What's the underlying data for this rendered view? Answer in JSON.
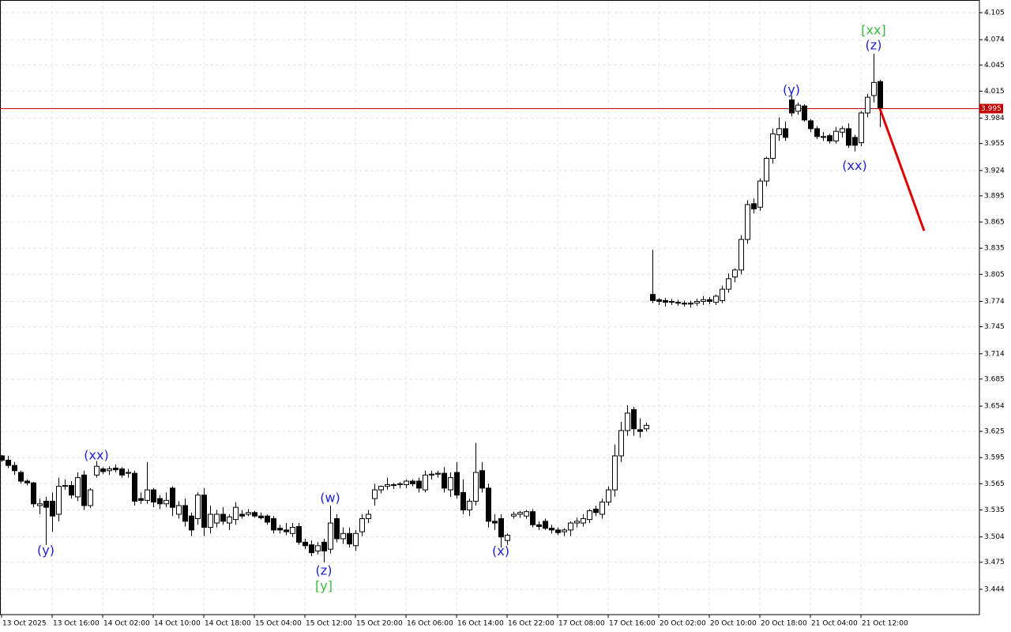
{
  "chart_data": {
    "type": "candlestick",
    "ylim": [
      3.415,
      4.1195
    ],
    "yticks": [
      4.105,
      4.074,
      4.045,
      4.015,
      3.984,
      3.955,
      3.924,
      3.895,
      3.865,
      3.835,
      3.805,
      3.774,
      3.745,
      3.714,
      3.685,
      3.654,
      3.625,
      3.595,
      3.565,
      3.535,
      3.504,
      3.475,
      3.444
    ],
    "grid": true,
    "bull_color": "#ffffff",
    "bear_color": "#000000",
    "categories": [
      "13 Oct 2025",
      null,
      null,
      null,
      null,
      null,
      null,
      null,
      "13 Oct 16:00",
      null,
      null,
      null,
      null,
      null,
      null,
      null,
      "14 Oct 02:00",
      null,
      null,
      null,
      null,
      null,
      null,
      null,
      "14 Oct 10:00",
      null,
      null,
      null,
      null,
      null,
      null,
      null,
      "14 Oct 18:00",
      null,
      null,
      null,
      null,
      null,
      null,
      null,
      "15 Oct 04:00",
      null,
      null,
      null,
      null,
      null,
      null,
      null,
      "15 Oct 12:00",
      null,
      null,
      null,
      null,
      null,
      null,
      null,
      "15 Oct 20:00",
      null,
      null,
      null,
      null,
      null,
      null,
      null,
      "16 Oct 06:00",
      null,
      null,
      null,
      null,
      null,
      null,
      null,
      "16 Oct 14:00",
      null,
      null,
      null,
      null,
      null,
      null,
      null,
      "16 Oct 22:00",
      null,
      null,
      null,
      null,
      null,
      null,
      null,
      "17 Oct 08:00",
      null,
      null,
      null,
      null,
      null,
      null,
      null,
      "17 Oct 16:00",
      null,
      null,
      null,
      null,
      null,
      null,
      null,
      "20 Oct 02:00",
      null,
      null,
      null,
      null,
      null,
      null,
      null,
      "20 Oct 10:00",
      null,
      null,
      null,
      null,
      null,
      null,
      null,
      "20 Oct 18:00",
      null,
      null,
      null,
      null,
      null,
      null,
      null,
      "21 Oct 04:00",
      null,
      null,
      null,
      null,
      null,
      null,
      null,
      "21 Oct 12:00",
      null,
      null,
      null
    ],
    "candles": [
      [
        3.597,
        3.598,
        3.59,
        3.592
      ],
      [
        3.592,
        3.597,
        3.583,
        3.586
      ],
      [
        3.586,
        3.59,
        3.575,
        3.58
      ],
      [
        3.578,
        3.58,
        3.565,
        3.568
      ],
      [
        3.568,
        3.57,
        3.563,
        3.566
      ],
      [
        3.566,
        3.567,
        3.538,
        3.542
      ],
      [
        3.54,
        3.548,
        3.53,
        3.542
      ],
      [
        3.545,
        3.55,
        3.495,
        3.538
      ],
      [
        3.545,
        3.555,
        3.51,
        3.528
      ],
      [
        3.53,
        3.572,
        3.522,
        3.562
      ],
      [
        3.562,
        3.57,
        3.558,
        3.563
      ],
      [
        3.563,
        3.568,
        3.548,
        3.552
      ],
      [
        3.55,
        3.578,
        3.545,
        3.572
      ],
      [
        3.575,
        3.58,
        3.535,
        3.54
      ],
      [
        3.54,
        3.56,
        3.537,
        3.558
      ],
      [
        3.575,
        3.591,
        3.572,
        3.585
      ],
      [
        3.582,
        3.584,
        3.576,
        3.579
      ],
      [
        3.58,
        3.585,
        3.575,
        3.582
      ],
      [
        3.583,
        3.587,
        3.578,
        3.581
      ],
      [
        3.582,
        3.584,
        3.572,
        3.575
      ],
      [
        3.577,
        3.582,
        3.572,
        3.578
      ],
      [
        3.577,
        3.58,
        3.54,
        3.545
      ],
      [
        3.548,
        3.555,
        3.542,
        3.546
      ],
      [
        3.546,
        3.59,
        3.542,
        3.558
      ],
      [
        3.558,
        3.56,
        3.538,
        3.544
      ],
      [
        3.548,
        3.552,
        3.536,
        3.542
      ],
      [
        3.542,
        3.555,
        3.538,
        3.546
      ],
      [
        3.56,
        3.562,
        3.528,
        3.538
      ],
      [
        3.53,
        3.545,
        3.525,
        3.54
      ],
      [
        3.54,
        3.548,
        3.516,
        3.522
      ],
      [
        3.528,
        3.532,
        3.505,
        3.512
      ],
      [
        3.525,
        3.555,
        3.518,
        3.552
      ],
      [
        3.552,
        3.56,
        3.505,
        3.515
      ],
      [
        3.515,
        3.54,
        3.508,
        3.53
      ],
      [
        3.52,
        3.535,
        3.515,
        3.53
      ],
      [
        3.53,
        3.538,
        3.518,
        3.522
      ],
      [
        3.52,
        3.53,
        3.512,
        3.527
      ],
      [
        3.524,
        3.544,
        3.518,
        3.538
      ],
      [
        3.53,
        3.535,
        3.525,
        3.528
      ],
      [
        3.53,
        3.536,
        3.528,
        3.532
      ],
      [
        3.532,
        3.534,
        3.526,
        3.528
      ],
      [
        3.528,
        3.532,
        3.524,
        3.526
      ],
      [
        3.528,
        3.53,
        3.518,
        3.521
      ],
      [
        3.525,
        3.528,
        3.508,
        3.512
      ],
      [
        3.514,
        3.518,
        3.508,
        3.512
      ],
      [
        3.512,
        3.52,
        3.506,
        3.51
      ],
      [
        3.508,
        3.52,
        3.504,
        3.515
      ],
      [
        3.516,
        3.52,
        3.495,
        3.498
      ],
      [
        3.498,
        3.502,
        3.49,
        3.494
      ],
      [
        3.495,
        3.5,
        3.482,
        3.486
      ],
      [
        3.488,
        3.498,
        3.484,
        3.494
      ],
      [
        3.498,
        3.502,
        3.475,
        3.488
      ],
      [
        3.49,
        3.54,
        3.485,
        3.52
      ],
      [
        3.525,
        3.53,
        3.498,
        3.502
      ],
      [
        3.502,
        3.515,
        3.496,
        3.508
      ],
      [
        3.508,
        3.515,
        3.492,
        3.496
      ],
      [
        3.494,
        3.512,
        3.488,
        3.508
      ],
      [
        3.51,
        3.53,
        3.505,
        3.525
      ],
      [
        3.525,
        3.535,
        3.52,
        3.53
      ],
      [
        3.548,
        3.565,
        3.54,
        3.558
      ],
      [
        3.558,
        3.563,
        3.554,
        3.562
      ],
      [
        3.562,
        3.572,
        3.558,
        3.564
      ],
      [
        3.563,
        3.566,
        3.559,
        3.564
      ],
      [
        3.564,
        3.567,
        3.56,
        3.565
      ],
      [
        3.564,
        3.57,
        3.56,
        3.568
      ],
      [
        3.568,
        3.57,
        3.562,
        3.565
      ],
      [
        3.568,
        3.572,
        3.555,
        3.56
      ],
      [
        3.558,
        3.58,
        3.555,
        3.575
      ],
      [
        3.575,
        3.58,
        3.57,
        3.576
      ],
      [
        3.576,
        3.58,
        3.572,
        3.577
      ],
      [
        3.577,
        3.584,
        3.555,
        3.56
      ],
      [
        3.558,
        3.578,
        3.55,
        3.572
      ],
      [
        3.578,
        3.59,
        3.548,
        3.552
      ],
      [
        3.555,
        3.57,
        3.53,
        3.535
      ],
      [
        3.535,
        3.548,
        3.528,
        3.545
      ],
      [
        3.545,
        3.612,
        3.54,
        3.578
      ],
      [
        3.58,
        3.59,
        3.555,
        3.56
      ],
      [
        3.56,
        3.565,
        3.515,
        3.522
      ],
      [
        3.522,
        3.53,
        3.512,
        3.52
      ],
      [
        3.525,
        3.53,
        3.492,
        3.504
      ],
      [
        3.5,
        3.508,
        3.495,
        3.506
      ],
      [
        3.528,
        3.533,
        3.525,
        3.53
      ],
      [
        3.53,
        3.534,
        3.526,
        3.532
      ],
      [
        3.528,
        3.535,
        3.525,
        3.533
      ],
      [
        3.533,
        3.536,
        3.515,
        3.518
      ],
      [
        3.518,
        3.522,
        3.512,
        3.516
      ],
      [
        3.522,
        3.525,
        3.512,
        3.514
      ],
      [
        3.514,
        3.518,
        3.508,
        3.512
      ],
      [
        3.512,
        3.515,
        3.506,
        3.509
      ],
      [
        3.51,
        3.514,
        3.505,
        3.512
      ],
      [
        3.512,
        3.522,
        3.505,
        3.52
      ],
      [
        3.52,
        3.526,
        3.515,
        3.522
      ],
      [
        3.52,
        3.53,
        3.516,
        3.525
      ],
      [
        3.524,
        3.536,
        3.52,
        3.534
      ],
      [
        3.536,
        3.54,
        3.528,
        3.532
      ],
      [
        3.53,
        3.548,
        3.525,
        3.544
      ],
      [
        3.544,
        3.562,
        3.54,
        3.558
      ],
      [
        3.558,
        3.61,
        3.55,
        3.597
      ],
      [
        3.597,
        3.636,
        3.59,
        3.626
      ],
      [
        3.626,
        3.655,
        3.62,
        3.646
      ],
      [
        3.65,
        3.653,
        3.62,
        3.628
      ],
      [
        3.627,
        3.64,
        3.618,
        3.625
      ],
      [
        3.628,
        3.635,
        3.625,
        3.632
      ],
      [
        3.782,
        3.833,
        3.772,
        3.775
      ],
      [
        3.776,
        3.778,
        3.77,
        3.774
      ],
      [
        3.775,
        3.778,
        3.768,
        3.773
      ],
      [
        3.774,
        3.777,
        3.77,
        3.773
      ],
      [
        3.773,
        3.776,
        3.769,
        3.772
      ],
      [
        3.772,
        3.775,
        3.768,
        3.771
      ],
      [
        3.771,
        3.775,
        3.767,
        3.772
      ],
      [
        3.772,
        3.777,
        3.769,
        3.774
      ],
      [
        3.774,
        3.78,
        3.77,
        3.776
      ],
      [
        3.776,
        3.779,
        3.771,
        3.774
      ],
      [
        3.773,
        3.782,
        3.77,
        3.78
      ],
      [
        3.775,
        3.792,
        3.772,
        3.788
      ],
      [
        3.788,
        3.806,
        3.784,
        3.8
      ],
      [
        3.802,
        3.812,
        3.796,
        3.81
      ],
      [
        3.81,
        3.85,
        3.805,
        3.845
      ],
      [
        3.845,
        3.89,
        3.84,
        3.885
      ],
      [
        3.886,
        3.892,
        3.875,
        3.88
      ],
      [
        3.882,
        3.915,
        3.878,
        3.912
      ],
      [
        3.912,
        3.94,
        3.906,
        3.938
      ],
      [
        3.938,
        3.972,
        3.932,
        3.966
      ],
      [
        3.965,
        3.985,
        3.958,
        3.972
      ],
      [
        3.972,
        3.98,
        3.958,
        3.962
      ],
      [
        4.005,
        4.01,
        3.986,
        3.99
      ],
      [
        3.992,
        4.002,
        3.988,
        3.999
      ],
      [
        3.998,
        4.0,
        3.98,
        3.982
      ],
      [
        3.981,
        3.983,
        3.968,
        3.972
      ],
      [
        3.972,
        3.975,
        3.96,
        3.963
      ],
      [
        3.963,
        3.968,
        3.958,
        3.962
      ],
      [
        3.964,
        3.966,
        3.955,
        3.958
      ],
      [
        3.958,
        3.974,
        3.955,
        3.969
      ],
      [
        3.968,
        3.975,
        3.962,
        3.972
      ],
      [
        3.972,
        3.978,
        3.95,
        3.953
      ],
      [
        3.962,
        3.965,
        3.946,
        3.953
      ],
      [
        3.956,
        3.992,
        3.952,
        3.99
      ],
      [
        3.99,
        4.012,
        3.985,
        4.008
      ],
      [
        4.01,
        4.058,
        4.002,
        4.025
      ],
      [
        4.026,
        4.028,
        3.974,
        3.996
      ]
    ],
    "current_price": 3.995,
    "current_price_color": "#c00000",
    "forecast": {
      "x": [
        139,
        146
      ],
      "values": [
        3.995,
        3.855
      ],
      "color": "#e00000"
    },
    "annotations": [
      {
        "text": "(y)",
        "index": 7,
        "price": 3.488,
        "color": "#1f1fd0"
      },
      {
        "text": "(xx)",
        "index": 15,
        "price": 3.597,
        "color": "#1f1fd0"
      },
      {
        "text": "(w)",
        "index": 52,
        "price": 3.548,
        "color": "#1f1fd0"
      },
      {
        "text": "(z)",
        "index": 51,
        "price": 3.465,
        "color": "#1f1fd0"
      },
      {
        "text": "[y]",
        "index": 51,
        "price": 3.447,
        "color": "#3cb83c"
      },
      {
        "text": "(x)",
        "index": 79,
        "price": 3.487,
        "color": "#1f1fd0"
      },
      {
        "text": "(y)",
        "index": 125,
        "price": 4.016,
        "color": "#1f1fd0"
      },
      {
        "text": "(xx)",
        "index": 135,
        "price": 3.929,
        "color": "#1f1fd0"
      },
      {
        "text": "(z)",
        "index": 138,
        "price": 4.067,
        "color": "#1f1fd0"
      },
      {
        "text": "[xx]",
        "index": 138,
        "price": 4.084,
        "color": "#3cb83c"
      }
    ]
  }
}
